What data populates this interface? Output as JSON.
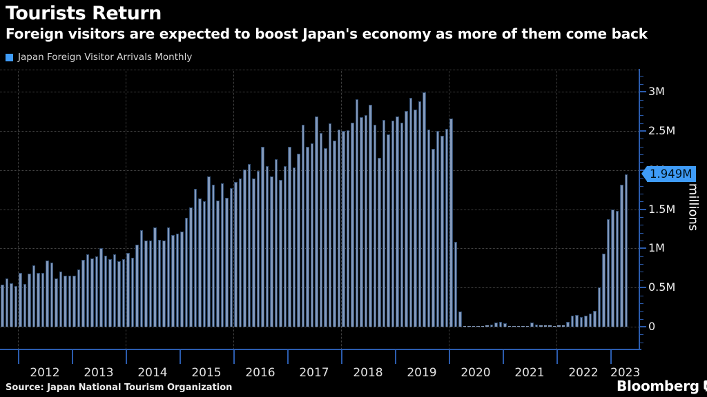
{
  "header": {
    "title": "Tourists Return",
    "subtitle": "Foreign visitors are expected to boost Japan's economy as more of them come back"
  },
  "legend": {
    "label": "Japan Foreign Visitor Arrivals Monthly"
  },
  "footer": {
    "source": "Source: Japan National Tourism Organization",
    "brand": "Bloomberg"
  },
  "colors": {
    "accent": "#3f9cf8",
    "axis": "#2b5cae",
    "grid": "#474747",
    "bar_fill": "#8399bb",
    "bar_border": "#2e4a6e",
    "callout_text": "#001018",
    "background": "#000000"
  },
  "chart_data": {
    "type": "bar",
    "title": "Japan Foreign Visitor Arrivals Monthly",
    "xlabel": "",
    "ylabel": "millions",
    "start_month": "2011-09",
    "end_month": "2023-04",
    "ylim": [
      0,
      3.25
    ],
    "grid": "dotted horizontal every 0.5M, dotted vertical at even years",
    "legend_position": "top-left",
    "x_year_labels": [
      "2012",
      "2013",
      "2014",
      "2015",
      "2016",
      "2017",
      "2018",
      "2019",
      "2020",
      "2021",
      "2022",
      "2023"
    ],
    "even_year_gridlines": [
      "2012",
      "2014",
      "2016",
      "2018",
      "2020",
      "2022"
    ],
    "y_axis": {
      "labels": [
        "0",
        "0.5M",
        "1M",
        "1.5M",
        "2M",
        "2.5M",
        "3M"
      ],
      "values": [
        0,
        0.5,
        1,
        1.5,
        2,
        2.5,
        3
      ],
      "minor_tick_step": 0.1,
      "axis_title": "millions",
      "side": "right"
    },
    "callout": {
      "label": "1.949M",
      "value": 1.949,
      "points_to": "2023-04"
    },
    "unit": "millions of visitors per month",
    "values": [
      0.539,
      0.616,
      0.552,
      0.522,
      0.687,
      0.547,
      0.679,
      0.78,
      0.687,
      0.687,
      0.847,
      0.817,
      0.613,
      0.707,
      0.656,
      0.653,
      0.653,
      0.73,
      0.857,
      0.923,
      0.875,
      0.902,
      1.003,
      0.906,
      0.867,
      0.929,
      0.84,
      0.865,
      0.944,
      0.88,
      1.051,
      1.232,
      1.097,
      1.105,
      1.27,
      1.111,
      1.099,
      1.272,
      1.168,
      1.191,
      1.218,
      1.387,
      1.526,
      1.765,
      1.642,
      1.602,
      1.918,
      1.817,
      1.612,
      1.829,
      1.648,
      1.773,
      1.852,
      1.891,
      2.01,
      2.082,
      1.894,
      1.986,
      2.297,
      2.049,
      1.918,
      2.136,
      1.875,
      2.051,
      2.296,
      2.036,
      2.206,
      2.579,
      2.295,
      2.346,
      2.682,
      2.478,
      2.28,
      2.595,
      2.378,
      2.521,
      2.502,
      2.509,
      2.608,
      2.901,
      2.675,
      2.705,
      2.832,
      2.578,
      2.16,
      2.641,
      2.454,
      2.633,
      2.689,
      2.604,
      2.76,
      2.927,
      2.773,
      2.88,
      2.991,
      2.52,
      2.273,
      2.497,
      2.441,
      2.526,
      2.661,
      1.085,
      0.194,
      0.003,
      0.002,
      0.003,
      0.004,
      0.009,
      0.014,
      0.027,
      0.057,
      0.059,
      0.046,
      0.007,
      0.012,
      0.011,
      0.01,
      0.009,
      0.051,
      0.026,
      0.018,
      0.022,
      0.021,
      0.012,
      0.018,
      0.017,
      0.066,
      0.14,
      0.147,
      0.12,
      0.145,
      0.17,
      0.207,
      0.499,
      0.935,
      1.37,
      1.497,
      1.475,
      1.817,
      1.949
    ]
  }
}
